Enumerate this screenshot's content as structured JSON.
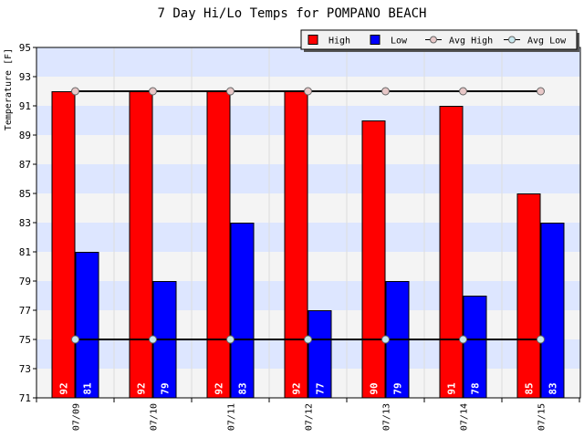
{
  "chart_data": {
    "type": "bar",
    "title": "7 Day Hi/Lo Temps for POMPANO BEACH",
    "ylabel": "Temperature [F]",
    "xlabel": "",
    "categories": [
      "07/09",
      "07/10",
      "07/11",
      "07/12",
      "07/13",
      "07/14",
      "07/15"
    ],
    "ylim": [
      71,
      95
    ],
    "yticks": [
      71,
      73,
      75,
      77,
      79,
      81,
      83,
      85,
      87,
      89,
      91,
      93,
      95
    ],
    "grid": true,
    "legend_position": "top-right",
    "series": [
      {
        "name": "High",
        "kind": "bar",
        "color": "#ff0000",
        "values": [
          92,
          92,
          92,
          92,
          90,
          91,
          85
        ]
      },
      {
        "name": "Low",
        "kind": "bar",
        "color": "#0000ff",
        "values": [
          81,
          79,
          83,
          77,
          79,
          78,
          83
        ]
      },
      {
        "name": "Avg High",
        "kind": "line",
        "color": "#000000",
        "marker_color": "#e8c8c8",
        "values": [
          92,
          92,
          92,
          92,
          92,
          92,
          92
        ]
      },
      {
        "name": "Avg Low",
        "kind": "line",
        "color": "#000000",
        "marker_color": "#c8e8ee",
        "values": [
          75,
          75,
          75,
          75,
          75,
          75,
          75
        ]
      }
    ]
  }
}
